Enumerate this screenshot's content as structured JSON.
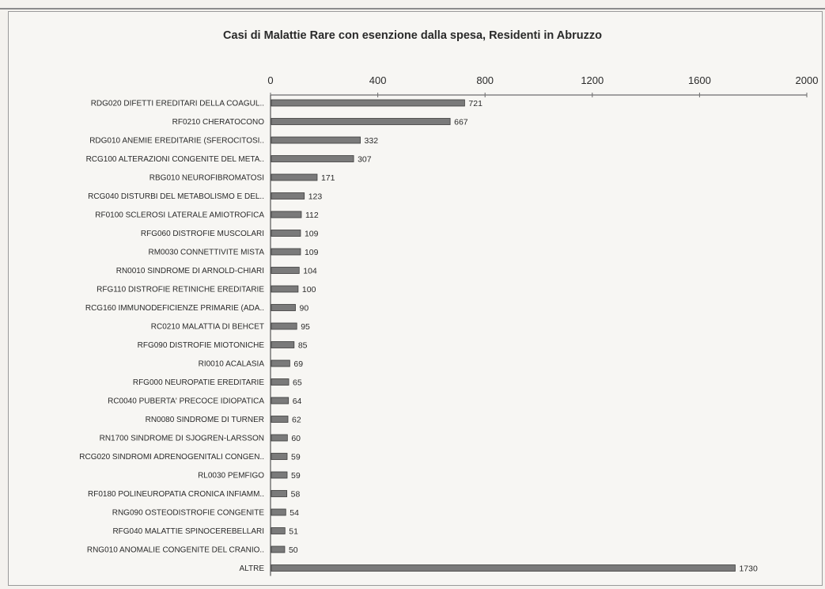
{
  "chart_data": {
    "type": "bar",
    "orientation": "horizontal",
    "title": "Casi di Malattie Rare con esenzione dalla spesa, Residenti in Abruzzo",
    "xlim": [
      0,
      2000
    ],
    "xticks": [
      "0",
      "400",
      "800",
      "1200",
      "1600",
      "2000"
    ],
    "tick_values": [
      0,
      400,
      800,
      1200,
      1600,
      2000
    ],
    "axis_position": "top",
    "bar_color": "#7a7a7a",
    "categories": [
      "RDG020 DIFETTI EREDITARI DELLA COAGUL..",
      "RF0210 CHERATOCONO",
      "RDG010 ANEMIE EREDITARIE (SFEROCITOSI..",
      "RCG100 ALTERAZIONI CONGENITE DEL META..",
      "RBG010 NEUROFIBROMATOSI",
      "RCG040 DISTURBI DEL METABOLISMO E DEL..",
      "RF0100 SCLEROSI LATERALE AMIOTROFICA",
      "RFG060 DISTROFIE MUSCOLARI",
      "RM0030 CONNETTIVITE MISTA",
      "RN0010 SINDROME DI ARNOLD-CHIARI",
      "RFG110 DISTROFIE RETINICHE EREDITARIE",
      "RCG160 IMMUNODEFICIENZE PRIMARIE (ADA..",
      "RC0210 MALATTIA DI BEHCET",
      "RFG090 DISTROFIE MIOTONICHE",
      "RI0010 ACALASIA",
      "RFG000 NEUROPATIE EREDITARIE",
      "RC0040 PUBERTA' PRECOCE IDIOPATICA",
      "RN0080 SINDROME DI TURNER",
      "RN1700 SINDROME DI SJOGREN-LARSSON",
      "RCG020 SINDROMI ADRENOGENITALI CONGEN..",
      "RL0030 PEMFIGO",
      "RF0180 POLINEUROPATIA CRONICA INFIAMM..",
      "RNG090 OSTEODISTROFIE CONGENITE",
      "RFG040 MALATTIE SPINOCEREBELLARI",
      "RNG010 ANOMALIE CONGENITE DEL CRANIO..",
      "ALTRE"
    ],
    "values": [
      721,
      667,
      332,
      307,
      171,
      123,
      112,
      109,
      109,
      104,
      100,
      90,
      95,
      85,
      69,
      65,
      64,
      62,
      60,
      59,
      59,
      58,
      54,
      51,
      50,
      1730
    ],
    "value_labels": [
      "721",
      "667",
      "332",
      "307",
      "171",
      "123",
      "112",
      "109",
      "109",
      "104",
      "100",
      "90",
      "95",
      "85",
      "69",
      "65",
      "64",
      "62",
      "60",
      "59",
      "59",
      "58",
      "54",
      "51",
      "50",
      "1730"
    ]
  }
}
